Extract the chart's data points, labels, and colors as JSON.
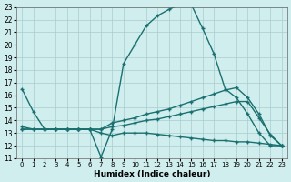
{
  "xlabel": "Humidex (Indice chaleur)",
  "ylabel": "",
  "bg_color": "#d0eeee",
  "grid_color": "#aacccc",
  "line_color": "#1a7070",
  "xlim": [
    0,
    23
  ],
  "ylim": [
    11,
    23
  ],
  "xticks": [
    0,
    1,
    2,
    3,
    4,
    5,
    6,
    7,
    8,
    9,
    10,
    11,
    12,
    13,
    14,
    15,
    16,
    17,
    18,
    19,
    20,
    21,
    22,
    23
  ],
  "yticks": [
    11,
    12,
    13,
    14,
    15,
    16,
    17,
    18,
    19,
    20,
    21,
    22,
    23
  ],
  "line1_x": [
    0,
    1,
    2,
    3,
    4,
    5,
    6,
    7,
    8,
    9,
    10,
    11,
    12,
    13,
    14,
    15,
    16,
    17,
    18,
    19,
    20,
    21,
    22,
    23
  ],
  "line1_y": [
    16.5,
    14.7,
    13.3,
    13.3,
    13.3,
    13.3,
    13.3,
    11.1,
    13.3,
    18.5,
    20.0,
    21.5,
    22.3,
    22.8,
    23.2,
    23.2,
    21.3,
    19.3,
    16.5,
    15.8,
    14.5,
    13.0,
    12.0,
    12.0
  ],
  "line2_x": [
    0,
    1,
    2,
    3,
    4,
    5,
    6,
    7,
    8,
    9,
    10,
    11,
    12,
    13,
    14,
    15,
    16,
    17,
    18,
    19,
    20,
    21,
    22,
    23
  ],
  "line2_y": [
    13.5,
    13.3,
    13.3,
    13.3,
    13.3,
    13.3,
    13.3,
    13.3,
    13.8,
    14.0,
    14.2,
    14.5,
    14.7,
    14.9,
    15.2,
    15.5,
    15.8,
    16.1,
    16.4,
    16.6,
    15.8,
    14.5,
    12.8,
    12.0
  ],
  "line3_x": [
    0,
    1,
    2,
    3,
    4,
    5,
    6,
    7,
    8,
    9,
    10,
    11,
    12,
    13,
    14,
    15,
    16,
    17,
    18,
    19,
    20,
    21,
    22,
    23
  ],
  "line3_y": [
    13.3,
    13.3,
    13.3,
    13.3,
    13.3,
    13.3,
    13.3,
    13.3,
    13.5,
    13.6,
    13.8,
    14.0,
    14.1,
    14.3,
    14.5,
    14.7,
    14.9,
    15.1,
    15.3,
    15.5,
    15.5,
    14.2,
    12.9,
    12.0
  ],
  "line4_x": [
    0,
    2,
    3,
    4,
    5,
    6,
    7,
    8,
    9,
    10,
    11,
    12,
    13,
    14,
    15,
    16,
    17,
    18,
    19,
    20,
    21,
    22,
    23
  ],
  "line4_y": [
    13.3,
    13.3,
    13.3,
    13.3,
    13.3,
    13.3,
    13.0,
    12.8,
    13.0,
    13.0,
    13.0,
    12.9,
    12.8,
    12.7,
    12.6,
    12.5,
    12.4,
    12.4,
    12.3,
    12.3,
    12.2,
    12.1,
    12.0
  ]
}
